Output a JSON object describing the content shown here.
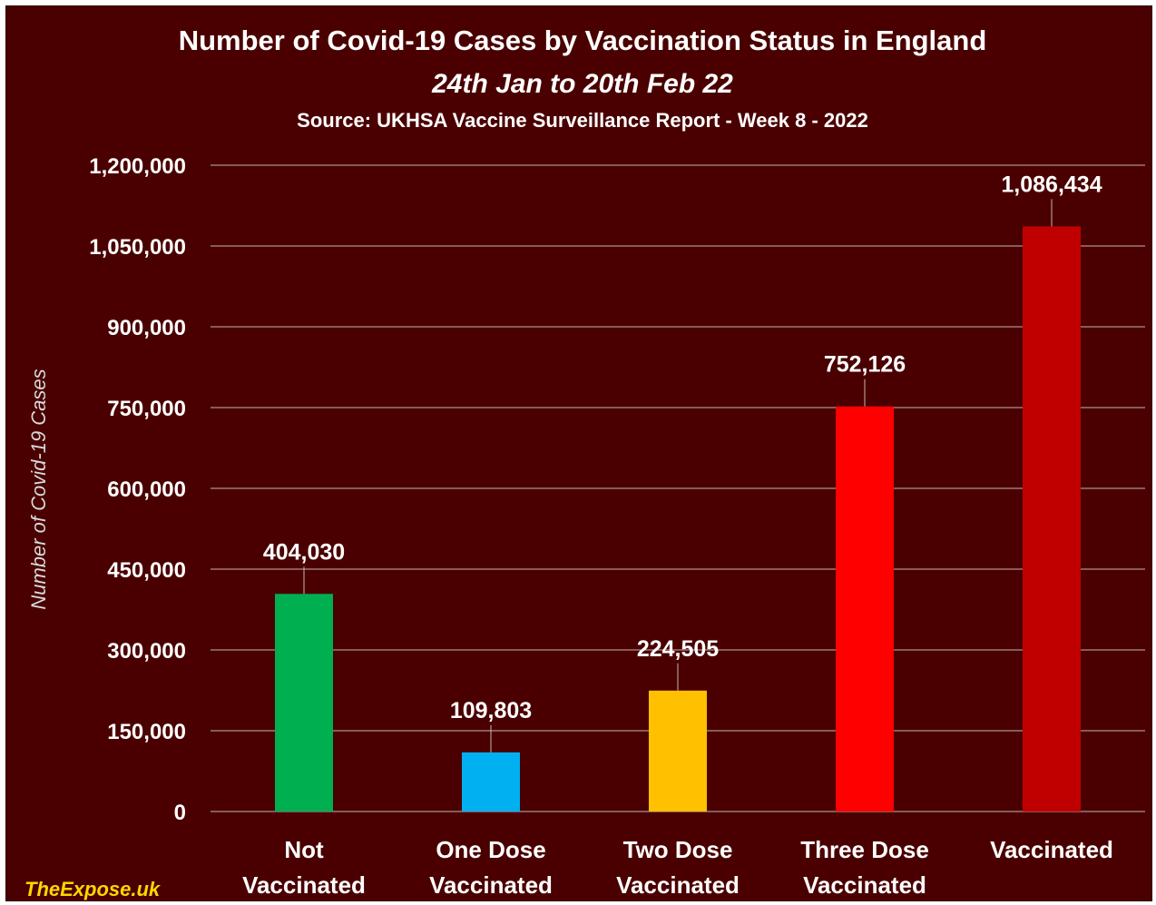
{
  "chart_data": {
    "type": "bar",
    "title": "Number of Covid-19 Cases by Vaccination Status in England",
    "subtitle": "24th Jan to 20th Feb 22",
    "source": "Source: UKHSA Vaccine Surveillance Report - Week 8 - 2022",
    "ylabel": "Number of Covid-19 Cases",
    "xlabel": "",
    "ylim": [
      0,
      1200000
    ],
    "yticks": [
      0,
      150000,
      300000,
      450000,
      600000,
      750000,
      900000,
      1050000,
      1200000
    ],
    "ytick_labels": [
      "0",
      "150,000",
      "300,000",
      "450,000",
      "600,000",
      "750,000",
      "900,000",
      "1,050,000",
      "1,200,000"
    ],
    "categories": [
      [
        "Not",
        "Vaccinated"
      ],
      [
        "One Dose",
        "Vaccinated"
      ],
      [
        "Two Dose",
        "Vaccinated"
      ],
      [
        "Three Dose",
        "Vaccinated"
      ],
      [
        "Vaccinated"
      ]
    ],
    "values": [
      404030,
      109803,
      224505,
      752126,
      1086434
    ],
    "data_labels": [
      "404,030",
      "109,803",
      "224,505",
      "752,126",
      "1,086,434"
    ],
    "bar_colors": [
      "#00b050",
      "#00b0f0",
      "#ffc000",
      "#ff0000",
      "#c00000"
    ],
    "grid": true,
    "legend": "none"
  },
  "watermark": "TheExpose.uk",
  "colors": {
    "background": "#4a0000",
    "text": "#ffffff",
    "watermark": "#ffd700"
  }
}
